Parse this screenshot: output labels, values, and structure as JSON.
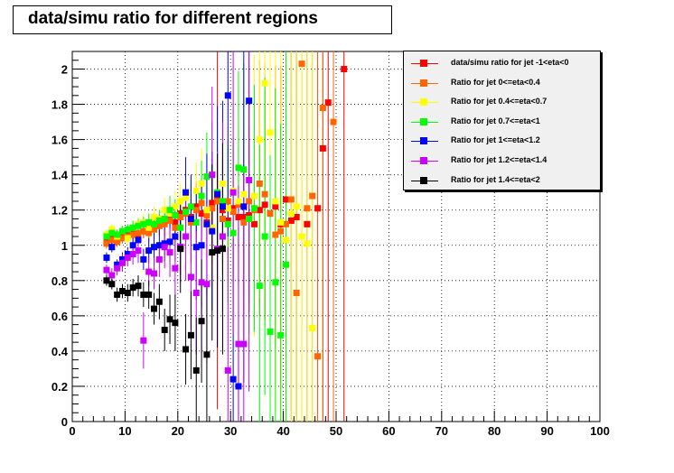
{
  "title": "data/simu ratio for different regions",
  "chart_data": {
    "type": "scatter",
    "title": "data/simu ratio for different regions",
    "xlabel": "",
    "ylabel": "",
    "xlim": [
      0,
      100
    ],
    "ylim": [
      0,
      2.1
    ],
    "xticks": [
      0,
      10,
      20,
      30,
      40,
      50,
      60,
      70,
      80,
      90,
      100
    ],
    "yticks": [
      0,
      0.2,
      0.4,
      0.6,
      0.8,
      1,
      1.2,
      1.4,
      1.6,
      1.8,
      2
    ],
    "grid": true,
    "legend": "top-right",
    "series": [
      {
        "name": "data/simu ratio for jet -1<eta<0",
        "color": "#ff0000",
        "x": [
          6.5,
          7.5,
          8.5,
          9.5,
          10.5,
          11.5,
          12.5,
          13.5,
          14.5,
          15.5,
          16.5,
          17.5,
          18.5,
          19.5,
          20.5,
          21.5,
          22.5,
          23.5,
          24.5,
          25.5,
          26.5,
          27.5,
          28.5,
          29.5,
          30.5,
          31.5,
          32.5,
          33.5,
          34.5,
          35.5,
          36.5,
          37.5,
          38.5,
          39.5,
          40.5,
          41.5,
          42.5,
          43.5,
          44.5,
          46.5,
          47.5,
          48.5,
          51.5
        ],
        "y": [
          1.02,
          1.04,
          1.03,
          1.05,
          1.06,
          1.07,
          1.06,
          1.08,
          1.09,
          1.1,
          1.12,
          1.14,
          1.15,
          1.13,
          1.18,
          1.2,
          1.16,
          1.22,
          1.18,
          1.13,
          1.24,
          1.27,
          1.2,
          1.14,
          1.21,
          1.16,
          1.16,
          1.17,
          1.12,
          1.2,
          1.23,
          1.18,
          1.22,
          1.12,
          1.26,
          1.14,
          1.16,
          1.05,
          1.12,
          1.21,
          1.55,
          1.81,
          2.0
        ],
        "yerr": [
          0.03,
          0.03,
          0.03,
          0.03,
          0.03,
          0.04,
          0.04,
          0.04,
          0.05,
          0.05,
          0.06,
          0.06,
          0.07,
          0.08,
          0.09,
          0.1,
          0.12,
          0.14,
          0.16,
          0.2,
          0.25,
          1.2,
          0.3,
          0.35,
          0.4,
          0.4,
          0.45,
          0.5,
          0.55,
          0.6,
          0.65,
          0.7,
          0.8,
          0.9,
          1.0,
          1.2,
          1.3,
          1.4,
          1.5,
          1.7,
          2.0,
          2.2,
          2.5
        ]
      },
      {
        "name": "Ratio for jet 0<=eta<0.4",
        "color": "#ff6600",
        "x": [
          6.5,
          7.5,
          8.5,
          9.5,
          10.5,
          11.5,
          12.5,
          13.5,
          14.5,
          15.5,
          16.5,
          17.5,
          18.5,
          19.5,
          20.5,
          21.5,
          22.5,
          23.5,
          24.5,
          25.5,
          26.5,
          27.5,
          28.5,
          29.5,
          30.5,
          31.5,
          32.5,
          33.5,
          34.5,
          35.5,
          36.5,
          37.5,
          38.5,
          39.5,
          40.5,
          41.5,
          42.5,
          43.5,
          44.5,
          45.5,
          46.5,
          47.5,
          49.5
        ],
        "y": [
          1.01,
          1.03,
          1.02,
          1.04,
          1.05,
          1.06,
          1.07,
          1.08,
          1.07,
          1.09,
          1.11,
          1.12,
          1.14,
          1.1,
          1.16,
          1.18,
          1.13,
          1.2,
          1.24,
          1.17,
          1.21,
          1.25,
          1.15,
          1.25,
          1.19,
          1.23,
          1.13,
          1.25,
          1.2,
          1.35,
          1.29,
          1.18,
          1.06,
          1.08,
          1.12,
          1.26,
          0.73,
          2.03,
          1.21,
          1.28,
          0.37,
          1.78,
          1.7
        ],
        "yerr": [
          0.03,
          0.03,
          0.03,
          0.03,
          0.03,
          0.04,
          0.04,
          0.04,
          0.05,
          0.05,
          0.06,
          0.07,
          0.08,
          0.09,
          0.1,
          0.11,
          0.12,
          0.14,
          0.16,
          0.2,
          0.25,
          0.3,
          0.3,
          0.35,
          0.4,
          0.45,
          0.5,
          0.55,
          0.6,
          0.7,
          0.75,
          0.8,
          0.85,
          0.9,
          1.0,
          1.2,
          1.3,
          1.5,
          1.7,
          1.9,
          2.0,
          2.2,
          2.5
        ]
      },
      {
        "name": "Ratio for jet 0.4<=eta<0.7",
        "color": "#ffff00",
        "x": [
          6.5,
          7.5,
          8.5,
          9.5,
          10.5,
          11.5,
          12.5,
          13.5,
          14.5,
          15.5,
          16.5,
          17.5,
          18.5,
          19.5,
          20.5,
          21.5,
          22.5,
          23.5,
          24.5,
          25.5,
          26.5,
          27.5,
          28.5,
          29.5,
          30.5,
          31.5,
          32.5,
          33.5,
          34.5,
          35.5,
          36.5,
          37.5,
          38.5,
          39.5,
          40.5,
          41.5,
          42.5,
          43.5,
          44.5,
          45.5
        ],
        "y": [
          1.06,
          1.09,
          1.05,
          1.08,
          1.04,
          1.1,
          1.12,
          1.13,
          1.1,
          1.16,
          1.15,
          1.2,
          1.18,
          1.22,
          1.25,
          1.27,
          1.15,
          1.31,
          1.35,
          1.2,
          1.1,
          1.3,
          1.35,
          1.21,
          1.31,
          1.25,
          1.29,
          1.15,
          1.28,
          1.6,
          1.92,
          1.64,
          1.25,
          1.13,
          1.03,
          1.18,
          1.22,
          1.05,
          1.01,
          0.53
        ],
        "yerr": [
          0.03,
          0.03,
          0.03,
          0.03,
          0.04,
          0.04,
          0.04,
          0.05,
          0.05,
          0.06,
          0.06,
          0.07,
          0.08,
          0.09,
          0.1,
          0.12,
          0.14,
          0.16,
          0.2,
          0.25,
          0.3,
          0.35,
          0.4,
          0.45,
          0.5,
          0.55,
          0.6,
          0.7,
          0.8,
          0.9,
          1.0,
          1.1,
          1.2,
          1.3,
          1.4,
          1.5,
          1.7,
          1.9,
          2.1,
          2.3
        ]
      },
      {
        "name": "Ratio for jet 0.7<=eta<1",
        "color": "#00ff00",
        "x": [
          6.5,
          7.5,
          8.5,
          9.5,
          10.5,
          11.5,
          12.5,
          13.5,
          14.5,
          15.5,
          16.5,
          17.5,
          18.5,
          19.5,
          20.5,
          21.5,
          22.5,
          23.5,
          24.5,
          25.5,
          26.5,
          27.5,
          28.5,
          29.5,
          30.5,
          31.5,
          32.5,
          33.5,
          34.5,
          35.5,
          36.5,
          37.5,
          38.5,
          39.5,
          40.5
        ],
        "y": [
          1.05,
          1.07,
          1.06,
          1.08,
          1.09,
          1.1,
          1.11,
          1.12,
          1.13,
          1.12,
          1.14,
          1.15,
          1.2,
          1.17,
          1.1,
          1.19,
          1.22,
          1.13,
          1.28,
          1.39,
          1.4,
          1.3,
          1.25,
          1.12,
          1.07,
          1.44,
          1.43,
          1.15,
          1.21,
          0.77,
          1.05,
          0.51,
          0.79,
          0.49,
          0.89
        ],
        "yerr": [
          0.03,
          0.03,
          0.03,
          0.03,
          0.03,
          0.04,
          0.04,
          0.04,
          0.05,
          0.05,
          0.06,
          0.07,
          0.08,
          0.09,
          0.1,
          0.12,
          0.14,
          0.16,
          0.2,
          0.25,
          0.3,
          0.35,
          0.4,
          0.45,
          0.5,
          0.55,
          0.6,
          0.65,
          0.7,
          0.8,
          0.9,
          1.0,
          1.1,
          1.2,
          1.3
        ]
      },
      {
        "name": "Ratio for jet 1<=eta<1.2",
        "color": "#0000ff",
        "x": [
          6.5,
          7.5,
          8.5,
          9.5,
          10.5,
          11.5,
          12.5,
          13.5,
          14.5,
          15.5,
          16.5,
          17.5,
          18.5,
          19.5,
          20.5,
          21.5,
          22.5,
          23.5,
          24.5,
          25.5,
          26.5,
          27.5,
          28.5,
          29.5,
          30.5,
          31.5,
          32.5,
          33.5
        ],
        "y": [
          0.93,
          0.99,
          0.89,
          0.92,
          0.95,
          1.0,
          1.03,
          0.92,
          0.97,
          0.99,
          1.0,
          1.01,
          1.02,
          1.05,
          0.99,
          1.3,
          1.15,
          0.99,
          1.0,
          1.12,
          1.08,
          1.29,
          1.22,
          1.85,
          0.24,
          0.2,
          1.22,
          1.82
        ],
        "yerr": [
          0.03,
          0.03,
          0.03,
          0.04,
          0.04,
          0.05,
          0.05,
          0.06,
          0.07,
          0.08,
          0.09,
          0.1,
          0.12,
          0.14,
          0.16,
          0.2,
          0.25,
          0.3,
          0.35,
          0.4,
          0.45,
          0.5,
          0.6,
          0.8,
          0.8,
          0.9,
          1.0,
          1.2
        ]
      },
      {
        "name": "Ratio for jet 1.2<=eta<1.4",
        "color": "#cc00ff",
        "x": [
          6.5,
          7.5,
          8.5,
          9.5,
          10.5,
          11.5,
          12.5,
          13.5,
          14.5,
          15.5,
          16.5,
          17.5,
          18.5,
          19.5,
          20.5,
          21.5,
          22.5,
          23.5,
          24.5,
          25.5,
          26.5,
          27.5,
          28.5,
          29.5,
          30.5,
          31.5,
          32.5,
          33.5
        ],
        "y": [
          0.86,
          0.83,
          0.87,
          0.9,
          0.93,
          0.95,
          0.97,
          0.46,
          0.85,
          0.84,
          0.92,
          0.99,
          0.96,
          0.87,
          0.99,
          1.05,
          0.82,
          0.73,
          0.79,
          0.78,
          1.4,
          0.98,
          1.05,
          0.29,
          1.3,
          0.44,
          0.44,
          1.37
        ],
        "yerr": [
          0.03,
          0.04,
          0.04,
          0.05,
          0.05,
          0.06,
          0.07,
          0.16,
          0.08,
          0.09,
          0.1,
          0.12,
          0.14,
          0.16,
          0.2,
          0.25,
          0.3,
          0.35,
          0.4,
          0.45,
          0.5,
          0.55,
          0.65,
          0.7,
          0.8,
          0.9,
          1.0,
          1.2
        ]
      },
      {
        "name": "Ratio for jet 1.4<=eta<2",
        "color": "#000000",
        "x": [
          6.5,
          7.5,
          8.5,
          9.5,
          10.5,
          11.5,
          12.5,
          13.5,
          14.5,
          15.5,
          16.5,
          17.5,
          18.5,
          19.5,
          20.5,
          21.5,
          22.5,
          23.5,
          24.5,
          25.5,
          26.5,
          27.5,
          28.5
        ],
        "y": [
          0.8,
          0.78,
          0.72,
          0.74,
          0.73,
          0.76,
          0.77,
          0.72,
          0.72,
          0.64,
          0.68,
          0.52,
          0.58,
          0.56,
          0.98,
          0.41,
          0.49,
          0.29,
          0.57,
          0.38,
          0.96,
          0.97,
          0.98
        ],
        "yerr": [
          0.03,
          0.03,
          0.04,
          0.04,
          0.05,
          0.05,
          0.06,
          0.07,
          0.08,
          0.09,
          0.1,
          0.12,
          0.14,
          0.16,
          0.25,
          0.2,
          0.25,
          0.3,
          0.35,
          0.4,
          0.5,
          0.55,
          0.6
        ]
      }
    ]
  }
}
